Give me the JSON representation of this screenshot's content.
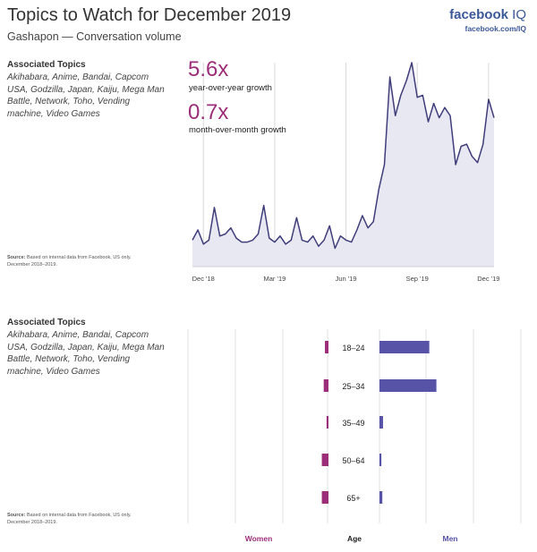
{
  "header": {
    "title": "Topics to Watch for December 2019",
    "subtitle": "Gashapon — Conversation volume"
  },
  "brand": {
    "name": "facebook",
    "suffix": "IQ",
    "url": "facebook.com/IQ"
  },
  "topics": {
    "heading": "Associated Topics",
    "list": "Akihabara, Anime, Bandai, Capcom USA, Godzilla, Japan, Kaiju, Mega Man Battle, Network, Toho, Vending machine, Video Games"
  },
  "source": {
    "label": "Source:",
    "text": "Based on internal data from Facebook, US only. December 2018–2019."
  },
  "stats": {
    "yoy_value": "5.6x",
    "yoy_label": "year-over-year growth",
    "mom_value": "0.7x",
    "mom_label": "month-over-month growth"
  },
  "colors": {
    "women": "#9c2e79",
    "men": "#5753a6",
    "line": "#3f3d7a",
    "area": "#e8e8f3",
    "grid": "#d9d9d9"
  },
  "chart_data": [
    {
      "type": "area",
      "title": "Gashapon — Conversation volume",
      "xlabel": "",
      "ylabel": "",
      "x_ticks": [
        "Dec '18",
        "Mar '19",
        "Jun '19",
        "Sep '19",
        "Dec '19"
      ],
      "x_tick_positions": [
        2,
        15,
        28,
        41,
        54
      ],
      "ylim": [
        0,
        100
      ],
      "series": [
        {
          "name": "Conversation volume",
          "values": [
            13,
            18,
            11,
            13,
            29,
            15,
            16,
            19,
            14,
            12,
            12,
            13,
            16,
            30,
            14,
            12,
            15,
            11,
            13,
            24,
            13,
            12,
            15,
            10,
            13,
            20,
            9,
            15,
            13,
            12,
            18,
            25,
            19,
            22,
            38,
            50,
            93,
            74,
            84,
            91,
            100,
            83,
            84,
            71,
            80,
            73,
            78,
            74,
            50,
            59,
            60,
            54,
            51,
            60,
            82,
            73
          ]
        }
      ]
    },
    {
      "type": "bar",
      "title": "Age and gender distribution",
      "categories": [
        "18–24",
        "25–34",
        "35–49",
        "50–64",
        "65+"
      ],
      "series": [
        {
          "name": "Women",
          "values": [
            1.5,
            2.0,
            0.8,
            2.8,
            2.8
          ]
        },
        {
          "name": "Men",
          "values": [
            21.0,
            24.0,
            1.5,
            0.8,
            1.2
          ]
        }
      ],
      "xlim": [
        0,
        60
      ],
      "labels": {
        "women": "Women",
        "age": "Age",
        "men": "Men"
      }
    }
  ]
}
